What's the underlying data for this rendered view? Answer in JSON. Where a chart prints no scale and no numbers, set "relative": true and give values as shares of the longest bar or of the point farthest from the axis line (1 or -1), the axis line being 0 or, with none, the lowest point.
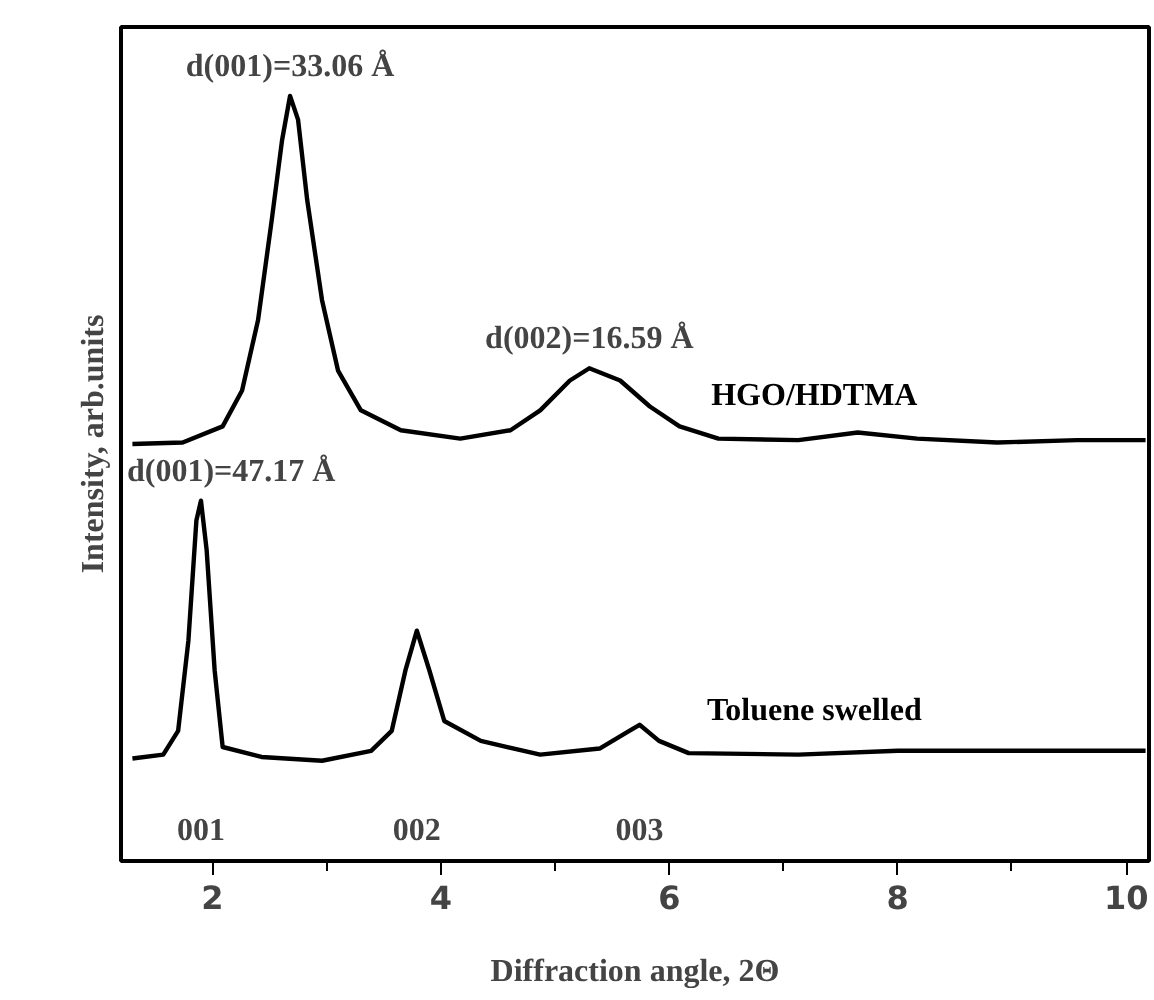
{
  "chart_data": {
    "type": "line",
    "relative": true,
    "xlabel": "Diffraction angle, 2Θ",
    "ylabel": "Intensity, arb.units",
    "xlim": [
      1.2,
      10.2
    ],
    "xticks": [
      2,
      {
        "value": 3,
        "label": null
      },
      4,
      {
        "value": 5,
        "label": null
      },
      6,
      {
        "value": 7,
        "label": null
      },
      8,
      {
        "value": 9,
        "label": null
      },
      10
    ],
    "grid": false,
    "line_style": "solid",
    "marker": "none",
    "series": [
      {
        "name": "HGO/HDTMA",
        "color": "#000000",
        "x": [
          1.3,
          1.74,
          2.09,
          2.26,
          2.4,
          2.52,
          2.61,
          2.68,
          2.75,
          2.83,
          2.96,
          3.1,
          3.3,
          3.65,
          4.17,
          4.61,
          4.87,
          5.13,
          5.3,
          5.57,
          5.83,
          6.09,
          6.43,
          7.13,
          7.65,
          8.17,
          8.87,
          9.57,
          10.17
        ],
        "values": [
          0.545,
          0.547,
          0.568,
          0.615,
          0.707,
          0.838,
          0.942,
          1.0,
          0.969,
          0.864,
          0.733,
          0.641,
          0.589,
          0.563,
          0.552,
          0.563,
          0.589,
          0.628,
          0.644,
          0.628,
          0.594,
          0.568,
          0.552,
          0.55,
          0.56,
          0.552,
          0.547,
          0.55,
          0.55
        ]
      },
      {
        "name": "Toluene swelled",
        "color": "#000000",
        "x": [
          1.3,
          1.57,
          1.7,
          1.79,
          1.86,
          1.9,
          1.95,
          2.02,
          2.09,
          2.43,
          2.96,
          3.39,
          3.57,
          3.69,
          3.79,
          3.9,
          4.03,
          4.35,
          4.87,
          5.39,
          5.65,
          5.74,
          5.91,
          6.17,
          7.13,
          8.0,
          8.87,
          10.17
        ],
        "values": [
          0.134,
          0.139,
          0.17,
          0.288,
          0.445,
          0.471,
          0.406,
          0.249,
          0.149,
          0.136,
          0.131,
          0.144,
          0.17,
          0.249,
          0.301,
          0.249,
          0.183,
          0.157,
          0.139,
          0.147,
          0.17,
          0.178,
          0.157,
          0.141,
          0.139,
          0.144,
          0.144,
          0.144
        ]
      }
    ],
    "annotations": [
      {
        "text": "d(001)=33.06 Å",
        "x": 2.68,
        "y": 1.0
      },
      {
        "text": "d(002)=16.59 Å",
        "x": 5.3,
        "y": 0.644
      },
      {
        "text": "d(001)=47.17 Å",
        "x": 1.9,
        "y": 0.471
      },
      "001",
      "002",
      "003"
    ]
  }
}
